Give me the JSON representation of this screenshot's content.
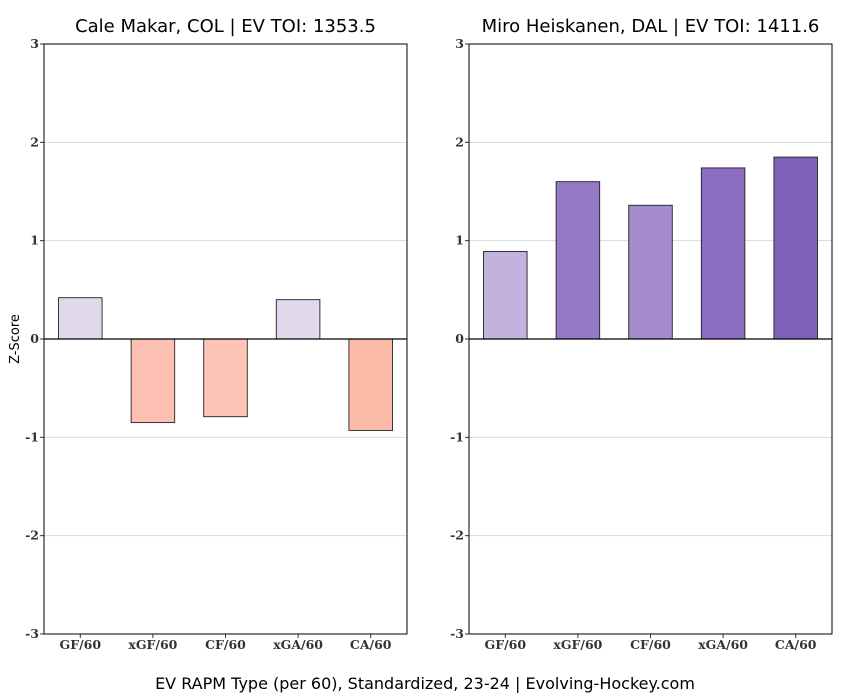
{
  "footer": "EV RAPM Type (per 60), Standardized, 23-24    |    Evolving-Hockey.com",
  "chart_data": [
    {
      "type": "bar",
      "title": "Cale Makar, COL  |  EV TOI: 1353.5",
      "ylabel": "Z-Score",
      "ylim": [
        -3,
        3
      ],
      "yticks": [
        -3,
        -2,
        -1,
        0,
        1,
        2,
        3
      ],
      "grid": true,
      "categories": [
        "GF/60",
        "xGF/60",
        "CF/60",
        "xGA/60",
        "CA/60"
      ],
      "values": [
        0.42,
        -0.85,
        -0.79,
        0.4,
        -0.93
      ],
      "colors": [
        "#e1d8ee",
        "#fcbfb1",
        "#fdc5b8",
        "#e1d8ee",
        "#fcbaa8"
      ]
    },
    {
      "type": "bar",
      "title": "Miro Heiskanen, DAL  |  EV TOI: 1411.6",
      "ylabel": "",
      "ylim": [
        -3,
        3
      ],
      "yticks": [
        -3,
        -2,
        -1,
        0,
        1,
        2,
        3
      ],
      "grid": true,
      "categories": [
        "GF/60",
        "xGF/60",
        "CF/60",
        "xGA/60",
        "CA/60"
      ],
      "values": [
        0.89,
        1.6,
        1.36,
        1.74,
        1.85
      ],
      "colors": [
        "#c2b2dd",
        "#9579c5",
        "#a48bcc",
        "#8b6cc0",
        "#7f61b9"
      ]
    }
  ]
}
